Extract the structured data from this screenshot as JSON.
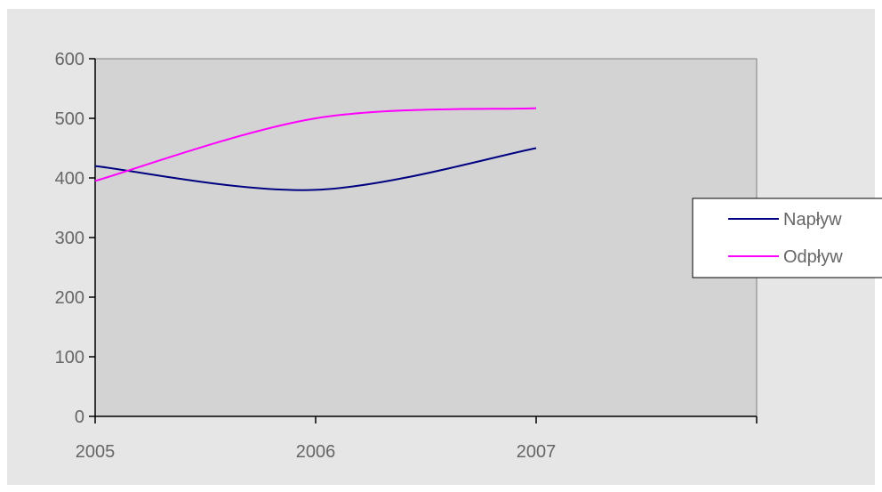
{
  "chart_data": {
    "type": "line",
    "x": [
      "2005",
      "2006",
      "2007"
    ],
    "y_ticks": [
      0,
      100,
      200,
      300,
      400,
      500,
      600
    ],
    "ylim": [
      0,
      600
    ],
    "grid": false,
    "legend_position": "right",
    "series": [
      {
        "name": "Napływ",
        "values": [
          420,
          380,
          450
        ],
        "color": "#000080"
      },
      {
        "name": "Odpływ",
        "values": [
          395,
          500,
          517
        ],
        "color": "#ff00ff"
      }
    ],
    "colors": {
      "outer_background": "#e6e6e6",
      "plot_background": "#d3d3d3",
      "axis": "#000000",
      "text": "#666666"
    }
  }
}
